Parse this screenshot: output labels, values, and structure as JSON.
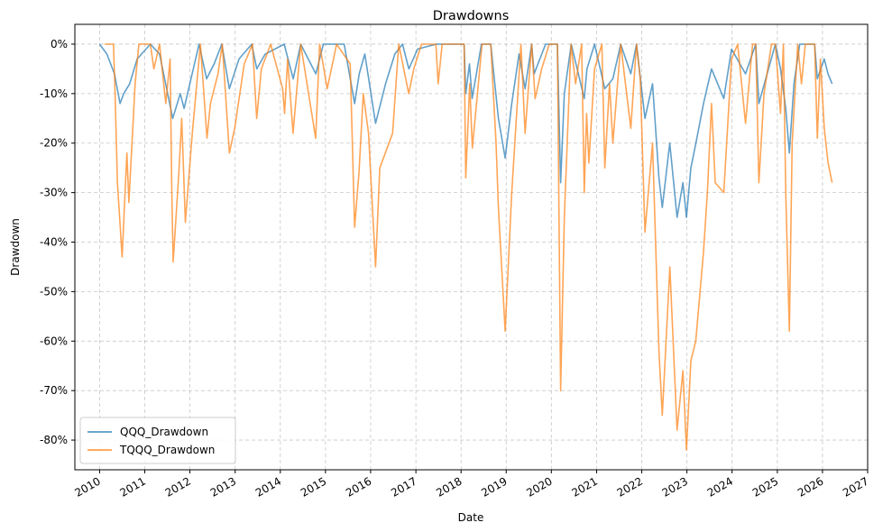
{
  "chart_data": {
    "type": "line",
    "title": "Drawdowns",
    "xlabel": "Date",
    "ylabel": "Drawdown",
    "xlim": [
      "2009-06-15",
      "2027-01-01"
    ],
    "ylim": [
      -86,
      4
    ],
    "y_ticks": [
      0,
      -10,
      -20,
      -30,
      -40,
      -50,
      -60,
      -70,
      -80
    ],
    "y_tick_labels": [
      "0%",
      "-10%",
      "-20%",
      "-30%",
      "-40%",
      "-50%",
      "-60%",
      "-70%",
      "-80%"
    ],
    "x_ticks": [
      "2010-01-01",
      "2011-01-01",
      "2012-01-01",
      "2013-01-01",
      "2014-01-01",
      "2015-01-01",
      "2016-01-01",
      "2017-01-01",
      "2018-01-01",
      "2019-01-01",
      "2020-01-01",
      "2021-01-01",
      "2022-01-01",
      "2023-01-01",
      "2024-01-01",
      "2025-01-01",
      "2026-01-01",
      "2027-01-01"
    ],
    "x_tick_labels": [
      "2010",
      "2011",
      "2012",
      "2013",
      "2014",
      "2015",
      "2016",
      "2017",
      "2018",
      "2019",
      "2020",
      "2021",
      "2022",
      "2023",
      "2024",
      "2025",
      "2026",
      "2027"
    ],
    "grid": true,
    "legend_position": "lower-left",
    "series": [
      {
        "name": "QQQ_Drawdown",
        "color": "#1f77b4",
        "x": [
          "2010-01-01",
          "2010-03-01",
          "2010-05-01",
          "2010-06-15",
          "2010-07-15",
          "2010-09-01",
          "2010-11-01",
          "2011-02-15",
          "2011-05-01",
          "2011-08-15",
          "2011-10-15",
          "2011-11-15",
          "2012-03-15",
          "2012-05-15",
          "2012-07-15",
          "2012-09-15",
          "2012-11-15",
          "2013-02-01",
          "2013-05-15",
          "2013-06-25",
          "2013-09-01",
          "2014-02-01",
          "2014-04-15",
          "2014-06-15",
          "2014-10-15",
          "2014-12-15",
          "2015-06-01",
          "2015-08-25",
          "2015-10-01",
          "2015-11-15",
          "2016-02-10",
          "2016-05-01",
          "2016-07-15",
          "2016-09-15",
          "2016-11-05",
          "2017-01-15",
          "2017-06-15",
          "2017-09-01",
          "2018-01-26",
          "2018-02-08",
          "2018-03-10",
          "2018-04-01",
          "2018-06-15",
          "2018-08-29",
          "2018-10-30",
          "2018-12-24",
          "2019-02-15",
          "2019-04-15",
          "2019-06-03",
          "2019-07-26",
          "2019-08-15",
          "2019-11-15",
          "2020-02-19",
          "2020-03-16",
          "2020-04-15",
          "2020-06-10",
          "2020-09-23",
          "2020-10-15",
          "2020-12-15",
          "2021-03-08",
          "2021-05-12",
          "2021-07-15",
          "2021-10-04",
          "2021-11-19",
          "2022-01-27",
          "2022-03-29",
          "2022-05-20",
          "2022-06-16",
          "2022-08-15",
          "2022-10-13",
          "2022-11-30",
          "2022-12-28",
          "2023-02-02",
          "2023-03-15",
          "2023-05-15",
          "2023-07-19",
          "2023-10-26",
          "2023-12-28",
          "2024-04-19",
          "2024-07-10",
          "2024-08-05",
          "2024-12-16",
          "2025-01-27",
          "2025-03-10",
          "2025-04-08",
          "2025-05-15",
          "2025-07-01",
          "2025-10-29",
          "2025-11-20",
          "2026-01-15",
          "2026-02-15",
          "2026-03-20"
        ],
        "values": [
          0,
          -2,
          -6,
          -12,
          -10,
          -8,
          -3,
          0,
          -2,
          -15,
          -10,
          -13,
          0,
          -7,
          -4,
          0,
          -9,
          -3,
          0,
          -5,
          -2,
          0,
          -7,
          0,
          -6,
          0,
          0,
          -12,
          -6,
          -2,
          -16,
          -8,
          -2,
          0,
          -5,
          -1,
          0,
          0,
          0,
          -10,
          -4,
          -11,
          0,
          0,
          -15,
          -23,
          -12,
          -2,
          -9,
          0,
          -6,
          0,
          0,
          -28,
          -10,
          0,
          -11,
          -5,
          0,
          -9,
          -7,
          0,
          -6,
          0,
          -15,
          -8,
          -27,
          -33,
          -20,
          -35,
          -28,
          -35,
          -25,
          -20,
          -12,
          -5,
          -11,
          -1,
          -6,
          0,
          -12,
          0,
          -5,
          -13,
          -22,
          -8,
          0,
          0,
          -7,
          -3,
          -6,
          -8
        ]
      },
      {
        "name": "TQQQ_Drawdown",
        "color": "#ff7f0e",
        "x": [
          "2010-02-11",
          "2010-04-23",
          "2010-05-06",
          "2010-05-25",
          "2010-07-02",
          "2010-08-10",
          "2010-08-26",
          "2010-10-15",
          "2010-11-15",
          "2011-02-15",
          "2011-03-16",
          "2011-05-01",
          "2011-06-20",
          "2011-07-25",
          "2011-08-08",
          "2011-08-19",
          "2011-10-04",
          "2011-10-27",
          "2011-11-25",
          "2012-01-20",
          "2012-03-26",
          "2012-05-18",
          "2012-06-15",
          "2012-08-15",
          "2012-09-19",
          "2012-11-15",
          "2012-12-28",
          "2013-03-15",
          "2013-05-21",
          "2013-06-24",
          "2013-08-01",
          "2013-10-15",
          "2014-01-20",
          "2014-02-04",
          "2014-03-01",
          "2014-04-14",
          "2014-06-15",
          "2014-10-14",
          "2014-11-15",
          "2015-01-15",
          "2015-04-01",
          "2015-07-20",
          "2015-08-25",
          "2015-09-29",
          "2015-11-03",
          "2015-12-15",
          "2016-02-10",
          "2016-03-15",
          "2016-06-27",
          "2016-08-15",
          "2016-11-04",
          "2016-12-15",
          "2017-02-15",
          "2017-06-12",
          "2017-06-30",
          "2017-08-01",
          "2018-01-26",
          "2018-02-08",
          "2018-03-12",
          "2018-04-02",
          "2018-06-20",
          "2018-08-29",
          "2018-10-11",
          "2018-10-30",
          "2018-12-24",
          "2019-02-15",
          "2019-04-30",
          "2019-06-03",
          "2019-07-26",
          "2019-08-23",
          "2019-10-15",
          "2019-12-15",
          "2020-02-19",
          "2020-03-16",
          "2020-04-15",
          "2020-06-08",
          "2020-07-15",
          "2020-09-02",
          "2020-09-23",
          "2020-10-12",
          "2020-10-30",
          "2020-12-15",
          "2021-02-12",
          "2021-03-08",
          "2021-04-15",
          "2021-05-12",
          "2021-07-15",
          "2021-10-04",
          "2021-11-19",
          "2021-12-20",
          "2022-01-27",
          "2022-03-29",
          "2022-05-20",
          "2022-06-16",
          "2022-08-16",
          "2022-10-13",
          "2022-11-30",
          "2022-12-28",
          "2023-02-02",
          "2023-03-13",
          "2023-05-15",
          "2023-06-15",
          "2023-07-19",
          "2023-08-18",
          "2023-10-26",
          "2023-12-28",
          "2024-02-15",
          "2024-04-19",
          "2024-06-15",
          "2024-07-10",
          "2024-08-05",
          "2024-09-15",
          "2024-11-15",
          "2024-12-16",
          "2025-01-27",
          "2025-02-19",
          "2025-03-10",
          "2025-04-08",
          "2025-05-01",
          "2025-06-15",
          "2025-07-15",
          "2025-08-15",
          "2025-10-29",
          "2025-11-20",
          "2025-12-15",
          "2026-01-15",
          "2026-02-15",
          "2026-03-20"
        ],
        "values": [
          0,
          0,
          -10,
          -28,
          -43,
          -22,
          -32,
          -8,
          0,
          0,
          -5,
          0,
          -12,
          -3,
          -30,
          -44,
          -26,
          -15,
          -36,
          -18,
          0,
          -19,
          -12,
          -6,
          0,
          -22,
          -17,
          -4,
          0,
          -15,
          -5,
          0,
          -9,
          -14,
          -3,
          -18,
          0,
          -19,
          0,
          -9,
          0,
          -4,
          -37,
          -26,
          -10,
          -18,
          -45,
          -25,
          -18,
          0,
          -10,
          -5,
          0,
          0,
          -8,
          0,
          0,
          -27,
          -8,
          -21,
          0,
          0,
          -20,
          -33,
          -58,
          -30,
          0,
          -18,
          0,
          -11,
          -5,
          0,
          0,
          -70,
          -35,
          0,
          -8,
          0,
          -30,
          -14,
          -24,
          -5,
          0,
          -25,
          -8,
          -20,
          0,
          -17,
          0,
          -7,
          -38,
          -20,
          -62,
          -75,
          -45,
          -78,
          -66,
          -82,
          -64,
          -60,
          -42,
          -30,
          -12,
          -28,
          -30,
          -3,
          0,
          -16,
          0,
          0,
          -28,
          -10,
          0,
          0,
          -14,
          0,
          -30,
          -58,
          -20,
          0,
          -8,
          0,
          0,
          -19,
          -3,
          -17,
          -24,
          -28
        ]
      }
    ]
  }
}
